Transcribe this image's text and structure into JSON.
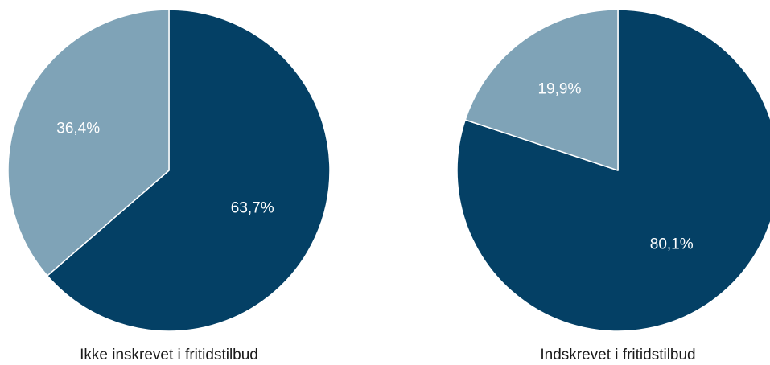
{
  "chart_data": [
    {
      "type": "pie",
      "title": "Ikke inskrevet i fritidstilbud",
      "slices": [
        {
          "value": 63.7,
          "label": "63,7%",
          "color": "#044065"
        },
        {
          "value": 36.4,
          "label": "36,4%",
          "color": "#7fa3b7"
        }
      ]
    },
    {
      "type": "pie",
      "title": "Indskrevet i fritidstilbud",
      "slices": [
        {
          "value": 80.1,
          "label": "80,1%",
          "color": "#044065"
        },
        {
          "value": 19.9,
          "label": "19,9%",
          "color": "#7fa3b7"
        }
      ]
    }
  ]
}
